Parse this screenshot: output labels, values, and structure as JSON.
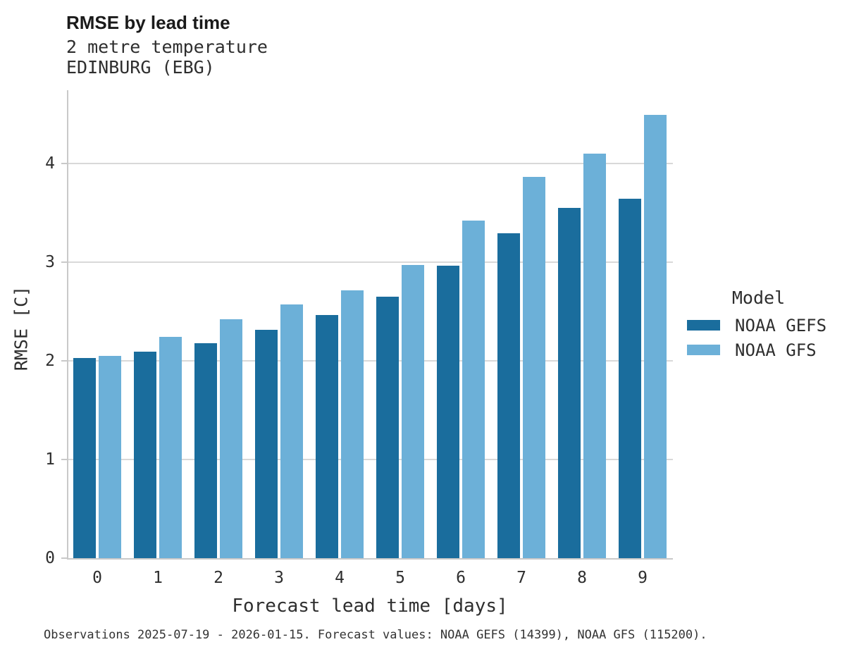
{
  "header": {
    "title": "RMSE by lead time",
    "subtitle_line1": "2 metre temperature",
    "subtitle_line2": "EDINBURG (EBG)"
  },
  "chart_data": {
    "type": "bar",
    "title": "RMSE by lead time",
    "variable": "2 metre temperature",
    "station": "EDINBURG (EBG)",
    "xlabel": "Forecast lead time [days]",
    "ylabel": "RMSE [C]",
    "categories": [
      "0",
      "1",
      "2",
      "3",
      "4",
      "5",
      "6",
      "7",
      "8",
      "9"
    ],
    "series": [
      {
        "name": "NOAA GEFS",
        "color": "#1a6d9d",
        "values": [
          2.03,
          2.09,
          2.18,
          2.31,
          2.46,
          2.65,
          2.96,
          3.29,
          3.55,
          3.64
        ]
      },
      {
        "name": "NOAA GFS",
        "color": "#6cb0d8",
        "values": [
          2.05,
          2.24,
          2.42,
          2.57,
          2.71,
          2.97,
          3.42,
          3.86,
          4.1,
          4.49
        ]
      }
    ],
    "ylim": [
      0,
      4.74
    ],
    "yticks": [
      0,
      1,
      2,
      3,
      4
    ],
    "grid": "horizontal-only",
    "legend_title": "Model",
    "legend_position": "right-outside"
  },
  "legend": {
    "title": "Model",
    "entries": [
      {
        "label": "NOAA GEFS",
        "color": "#1a6d9d"
      },
      {
        "label": "NOAA GFS",
        "color": "#6cb0d8"
      }
    ]
  },
  "footer": {
    "caption": "Observations 2025-07-19 - 2026-01-15. Forecast values: NOAA GEFS (14399), NOAA GFS (115200)."
  },
  "colors": {
    "background": "#ffffff",
    "grid": "#d9d9d9",
    "spine": "#c9c9c9",
    "text": "#2e2e2e",
    "noaa_gefs": "#1a6d9d",
    "noaa_gfs": "#6cb0d8"
  }
}
